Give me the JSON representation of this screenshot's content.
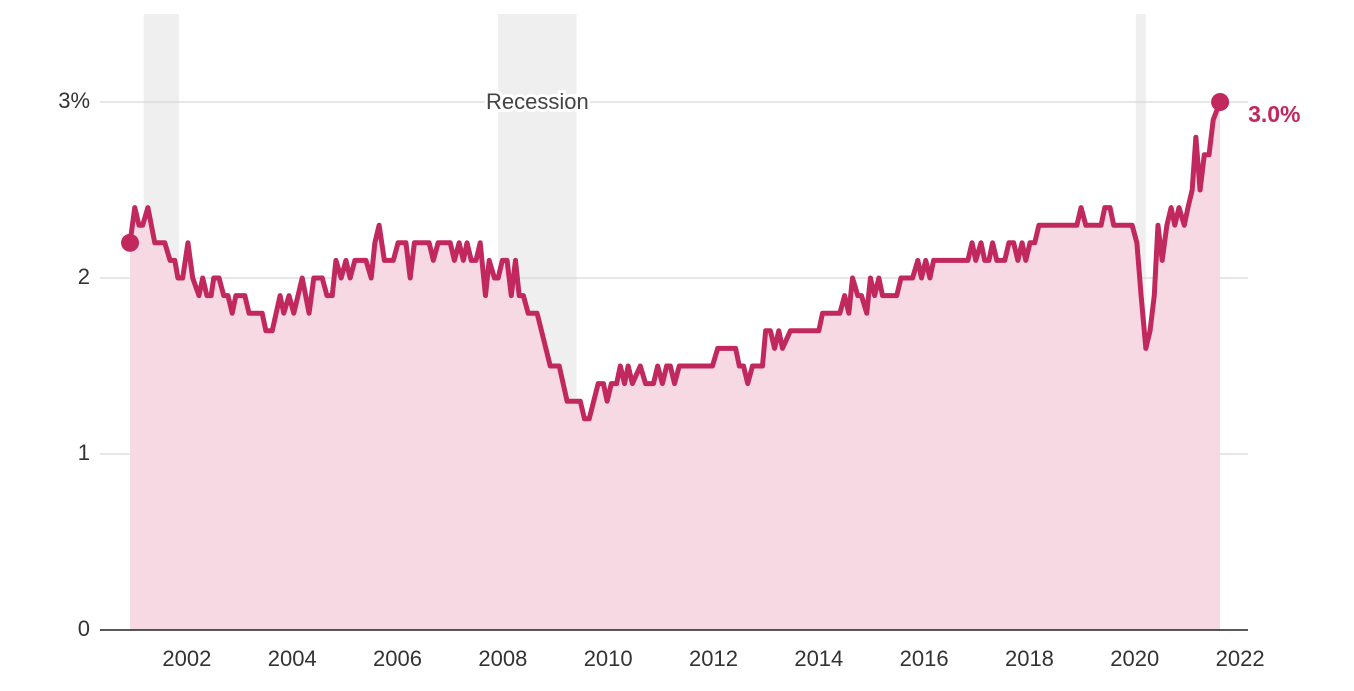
{
  "chart_data": {
    "type": "area-line",
    "color": "#c0285e",
    "fill_color": "#f7d9e3",
    "recession_color": "#efefef",
    "recession_label": "Recession",
    "recessions": [
      [
        2001.18,
        2001.85
      ],
      [
        2007.91,
        2009.4
      ],
      [
        2020.02,
        2020.21
      ]
    ],
    "end_label": "3.0%",
    "xlim": [
      2000.35,
      2022.15
    ],
    "xticks": [
      2002,
      2004,
      2006,
      2008,
      2010,
      2012,
      2014,
      2016,
      2018,
      2020,
      2022
    ],
    "ylim": [
      0,
      3.5
    ],
    "yticks": [
      0,
      1,
      2,
      {
        "value": 3,
        "label": "3%"
      }
    ],
    "grid": true,
    "x": [
      2000.92,
      2001.01,
      2001.09,
      2001.16,
      2001.26,
      2001.39,
      2001.58,
      2001.68,
      2001.77,
      2001.83,
      2001.92,
      2002.02,
      2002.11,
      2002.23,
      2002.3,
      2002.38,
      2002.46,
      2002.51,
      2002.61,
      2002.7,
      2002.78,
      2002.86,
      2002.93,
      2003.1,
      2003.18,
      2003.43,
      2003.5,
      2003.62,
      2003.77,
      2003.84,
      2003.94,
      2004.03,
      2004.19,
      2004.32,
      2004.41,
      2004.57,
      2004.66,
      2004.76,
      2004.83,
      2004.93,
      2005.02,
      2005.1,
      2005.19,
      2005.4,
      2005.5,
      2005.57,
      2005.65,
      2005.75,
      2005.92,
      2006.01,
      2006.16,
      2006.24,
      2006.32,
      2006.6,
      2006.68,
      2006.77,
      2007.0,
      2007.08,
      2007.17,
      2007.25,
      2007.32,
      2007.4,
      2007.49,
      2007.57,
      2007.67,
      2007.74,
      2007.84,
      2007.91,
      2007.99,
      2008.08,
      2008.16,
      2008.24,
      2008.31,
      2008.39,
      2008.48,
      2008.65,
      2008.9,
      2009.07,
      2009.22,
      2009.47,
      2009.55,
      2009.64,
      2009.81,
      2009.91,
      2009.98,
      2010.06,
      2010.16,
      2010.23,
      2010.31,
      2010.38,
      2010.46,
      2010.61,
      2010.71,
      2010.86,
      2010.94,
      2011.03,
      2011.11,
      2011.18,
      2011.26,
      2011.35,
      2011.98,
      2012.08,
      2012.42,
      2012.49,
      2012.57,
      2012.65,
      2012.74,
      2012.93,
      2012.99,
      2013.08,
      2013.16,
      2013.24,
      2013.31,
      2013.46,
      2014.0,
      2014.07,
      2014.4,
      2014.49,
      2014.57,
      2014.64,
      2014.74,
      2014.81,
      2014.91,
      2014.98,
      2015.06,
      2015.14,
      2015.21,
      2015.48,
      2015.56,
      2015.78,
      2015.88,
      2015.95,
      2016.03,
      2016.11,
      2016.18,
      2016.83,
      2016.91,
      2016.98,
      2017.08,
      2017.15,
      2017.23,
      2017.3,
      2017.38,
      2017.53,
      2017.61,
      2017.7,
      2017.78,
      2017.86,
      2017.93,
      2018.01,
      2018.1,
      2018.18,
      2018.9,
      2018.98,
      2019.07,
      2019.36,
      2019.43,
      2019.53,
      2019.6,
      2019.95,
      2020.04,
      2020.12,
      2020.21,
      2020.29,
      2020.37,
      2020.44,
      2020.52,
      2020.61,
      2020.69,
      2020.76,
      2020.84,
      2020.94,
      2021.01,
      2021.09,
      2021.16,
      2021.24,
      2021.32,
      2021.41,
      2021.49,
      2021.62
    ],
    "values": [
      2.2,
      2.4,
      2.3,
      2.3,
      2.4,
      2.2,
      2.2,
      2.1,
      2.1,
      2.0,
      2.0,
      2.2,
      2.0,
      1.9,
      2.0,
      1.9,
      1.9,
      2.0,
      2.0,
      1.9,
      1.9,
      1.8,
      1.9,
      1.9,
      1.8,
      1.8,
      1.7,
      1.7,
      1.9,
      1.8,
      1.9,
      1.8,
      2.0,
      1.8,
      2.0,
      2.0,
      1.9,
      1.9,
      2.1,
      2.0,
      2.1,
      2.0,
      2.1,
      2.1,
      2.0,
      2.2,
      2.3,
      2.1,
      2.1,
      2.2,
      2.2,
      2.0,
      2.2,
      2.2,
      2.1,
      2.2,
      2.2,
      2.1,
      2.2,
      2.1,
      2.2,
      2.1,
      2.1,
      2.2,
      1.9,
      2.1,
      2.0,
      2.0,
      2.1,
      2.1,
      1.9,
      2.1,
      1.9,
      1.9,
      1.8,
      1.8,
      1.5,
      1.5,
      1.3,
      1.3,
      1.2,
      1.2,
      1.4,
      1.4,
      1.3,
      1.4,
      1.4,
      1.5,
      1.4,
      1.5,
      1.4,
      1.5,
      1.4,
      1.4,
      1.5,
      1.4,
      1.5,
      1.5,
      1.4,
      1.5,
      1.5,
      1.6,
      1.6,
      1.5,
      1.5,
      1.4,
      1.5,
      1.5,
      1.7,
      1.7,
      1.6,
      1.7,
      1.6,
      1.7,
      1.7,
      1.8,
      1.8,
      1.9,
      1.8,
      2.0,
      1.9,
      1.9,
      1.8,
      2.0,
      1.9,
      2.0,
      1.9,
      1.9,
      2.0,
      2.0,
      2.1,
      2.0,
      2.1,
      2.0,
      2.1,
      2.1,
      2.2,
      2.1,
      2.2,
      2.1,
      2.1,
      2.2,
      2.1,
      2.1,
      2.2,
      2.2,
      2.1,
      2.2,
      2.1,
      2.2,
      2.2,
      2.3,
      2.3,
      2.4,
      2.3,
      2.3,
      2.4,
      2.4,
      2.3,
      2.3,
      2.2,
      1.9,
      1.6,
      1.7,
      1.9,
      2.3,
      2.1,
      2.3,
      2.4,
      2.3,
      2.4,
      2.3,
      2.4,
      2.5,
      2.8,
      2.5,
      2.7,
      2.7,
      2.9,
      3.0
    ]
  }
}
